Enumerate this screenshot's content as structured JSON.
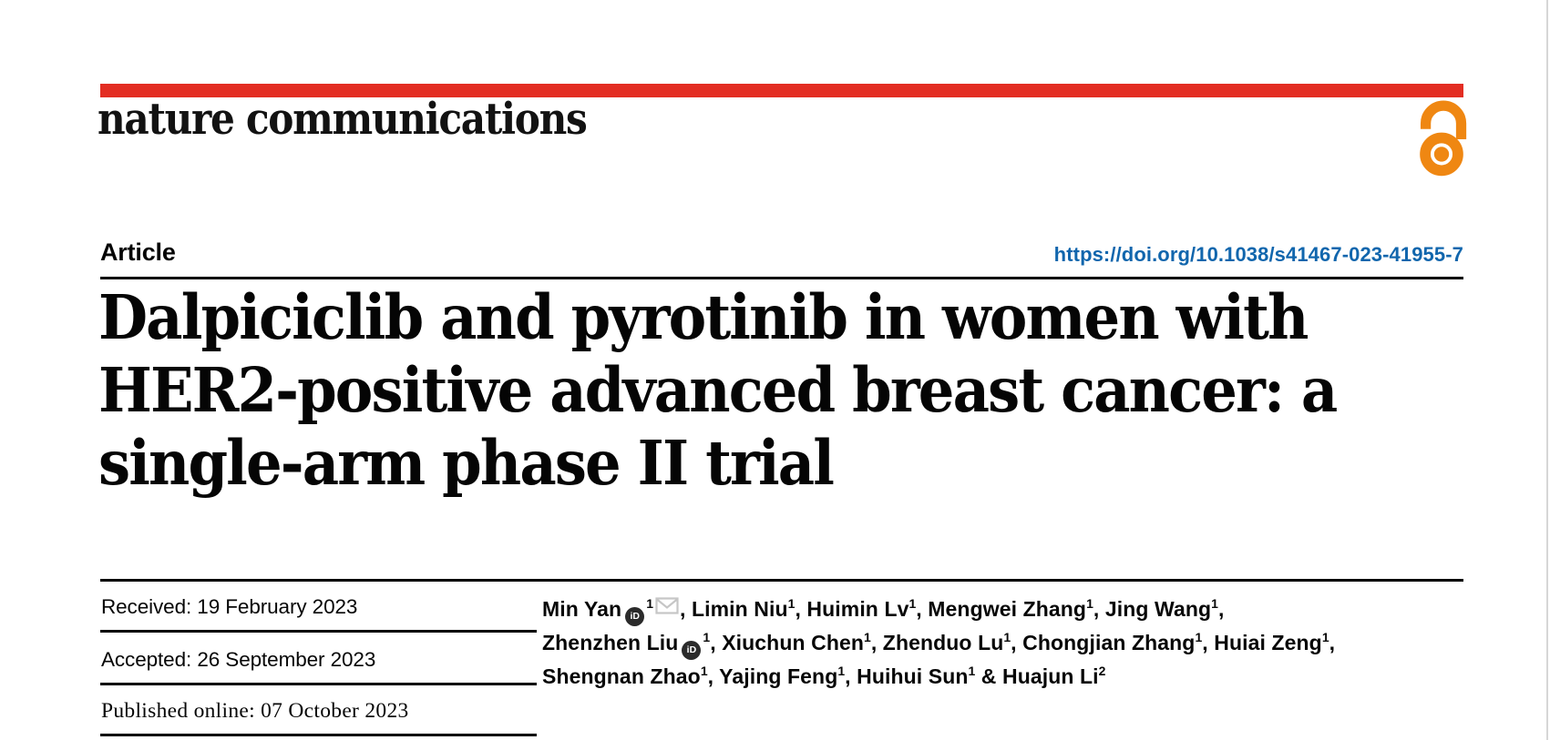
{
  "brand": {
    "journal_name": "nature communications",
    "open_access_icon": "open-access-padlock-icon"
  },
  "colors": {
    "brand_red": "#e32d22",
    "open_access_orange": "#ef8712",
    "link_blue": "#1166ad",
    "envelope_gray": "#c6c6c6"
  },
  "meta": {
    "article_label": "Article",
    "doi_url": "https://doi.org/10.1038/s41467-023-41955-7"
  },
  "title_lines": [
    "Dalpiciclib and pyrotinib in women with",
    "HER2-positive advanced breast cancer: a",
    "single-arm phase II trial"
  ],
  "history": {
    "received": "Received: 19 February 2023",
    "accepted": "Accepted: 26 September 2023",
    "published_online": "Published online: 07 October 2023"
  },
  "orcid_label": "iD",
  "authors": {
    "lines": [
      [
        {
          "t": "Min Yan"
        },
        {
          "icon": "orcid"
        },
        {
          "sup": "1"
        },
        {
          "icon": "envelope"
        },
        {
          "t": ", Limin Niu"
        },
        {
          "sup": "1"
        },
        {
          "t": ", Huimin Lv"
        },
        {
          "sup": "1"
        },
        {
          "t": ", Mengwei Zhang"
        },
        {
          "sup": "1"
        },
        {
          "t": ", Jing Wang"
        },
        {
          "sup": "1"
        },
        {
          "t": ","
        }
      ],
      [
        {
          "t": "Zhenzhen Liu"
        },
        {
          "icon": "orcid"
        },
        {
          "sup": "1"
        },
        {
          "t": ", Xiuchun Chen"
        },
        {
          "sup": "1"
        },
        {
          "t": ", Zhenduo Lu"
        },
        {
          "sup": "1"
        },
        {
          "t": ", Chongjian Zhang"
        },
        {
          "sup": "1"
        },
        {
          "t": ", Huiai Zeng"
        },
        {
          "sup": "1"
        },
        {
          "t": ","
        }
      ],
      [
        {
          "t": "Shengnan Zhao"
        },
        {
          "sup": "1"
        },
        {
          "t": ", Yajing Feng"
        },
        {
          "sup": "1"
        },
        {
          "t": ", Huihui Sun"
        },
        {
          "sup": "1"
        },
        {
          "t": " & Huajun Li"
        },
        {
          "sup": "2"
        }
      ]
    ]
  }
}
